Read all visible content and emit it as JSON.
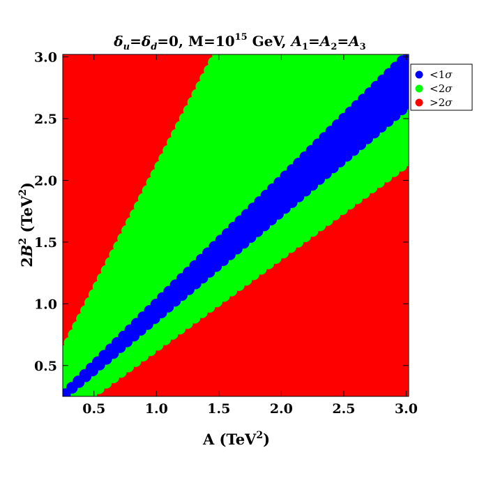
{
  "chart_data": {
    "type": "scatter",
    "title": "δu=δd=0,  M=10^15 GeV,  A1=A2=A3",
    "title_parts": {
      "delta_u": "δ",
      "u_sub": "u",
      "eq1": "=",
      "delta_d": "δ",
      "d_sub": "d",
      "eq2": "=0,  M=10",
      "exp": "15",
      "unit": " GeV,  ",
      "a1": "A",
      "a1_sub": "1",
      "eq3": "=",
      "a2": "A",
      "a2_sub": "2",
      "eq4": "=",
      "a3": "A",
      "a3_sub": "3"
    },
    "xlabel": "A (TeV²)",
    "xlabel_parts": {
      "main": "A (TeV",
      "sup": "2",
      "close": ")"
    },
    "ylabel": "2B² (TeV²)",
    "ylabel_parts": {
      "pre": "2",
      "b": "B",
      "bsup": "2",
      "mid": " (TeV",
      "sup": "2",
      "close": ")"
    },
    "xlim": [
      0.25,
      3.02
    ],
    "ylim": [
      0.25,
      3.02
    ],
    "xticks": [
      "0.5",
      "1.0",
      "1.5",
      "2.0",
      "2.5",
      "3.0"
    ],
    "yticks": [
      "0.5",
      "1.0",
      "1.5",
      "2.0",
      "2.5",
      "3.0"
    ],
    "xtick_values": [
      0.5,
      1.0,
      1.5,
      2.0,
      2.5,
      3.0
    ],
    "ytick_values": [
      0.5,
      1.0,
      1.5,
      2.0,
      2.5,
      3.0
    ],
    "grid": false,
    "legend_position": "right-top",
    "series": [
      {
        "name": "<1σ",
        "label_main": "<1",
        "label_sigma": "σ",
        "color": "#0000ff",
        "region": {
          "left_boundary": [
            [
              0.27,
              0.27
            ],
            [
              3.02,
              3.02
            ]
          ],
          "right_boundary": [
            [
              0.27,
              0.27
            ],
            [
              3.02,
              2.62
            ]
          ]
        }
      },
      {
        "name": "<2σ",
        "label_main": "<2",
        "label_sigma": "σ",
        "color": "#00ff00",
        "region": {
          "left_boundary": [
            [
              0.27,
              0.27
            ],
            [
              0.27,
              0.62
            ],
            [
              1.49,
              3.02
            ]
          ],
          "right_boundary": [
            [
              0.27,
              0.27
            ],
            [
              0.48,
              0.27
            ],
            [
              3.02,
              2.16
            ]
          ]
        }
      },
      {
        "name": ">2σ",
        "label_main": ">2",
        "label_sigma": "σ",
        "color": "#ff0000",
        "region": {
          "description_points": [
            [
              0.27,
              0.27
            ],
            [
              3.02,
              3.02
            ]
          ]
        }
      }
    ]
  }
}
